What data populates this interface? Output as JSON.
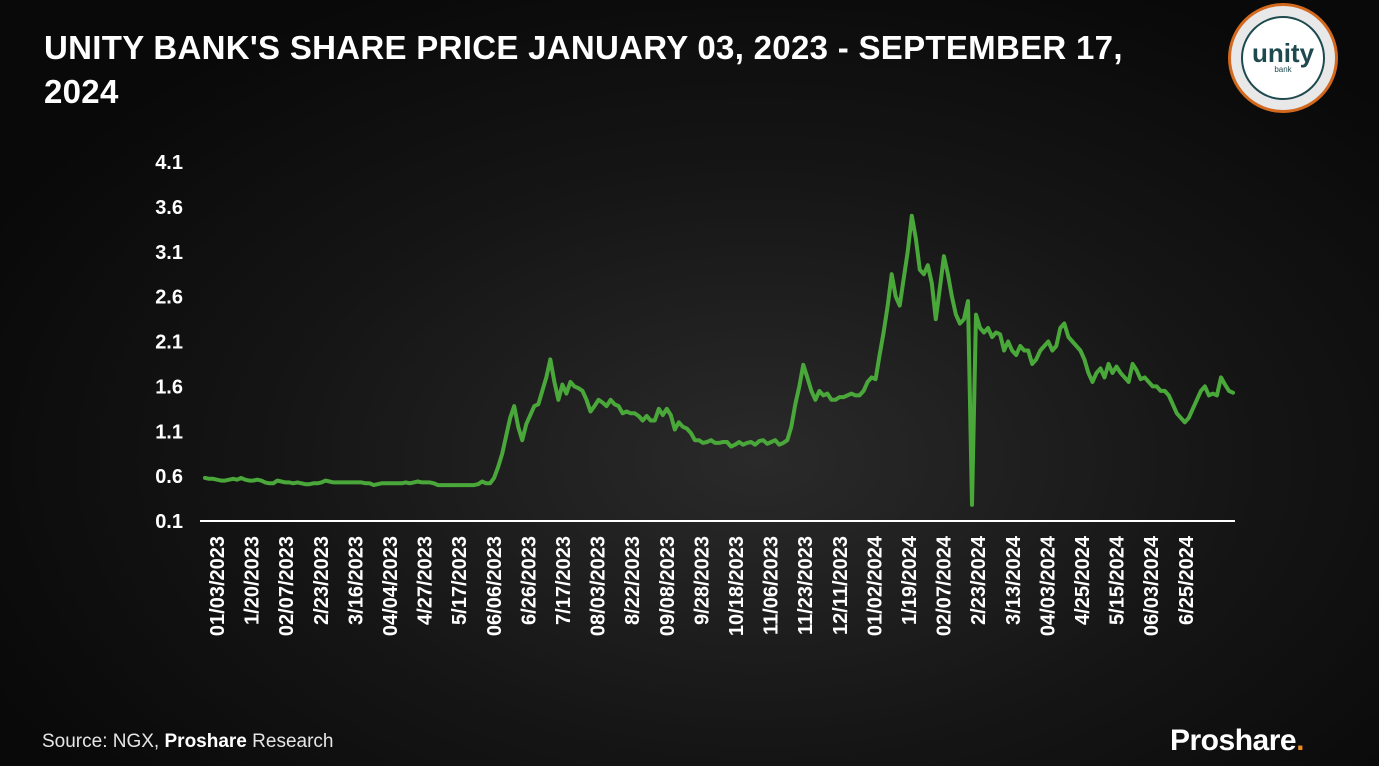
{
  "title": "UNITY BANK'S SHARE PRICE JANUARY 03, 2023 - SEPTEMBER 17, 2024",
  "logo": {
    "word": "unity",
    "sub": "bank"
  },
  "source": {
    "prefix": "Source: NGX, ",
    "bold": "Proshare",
    "suffix": " Research"
  },
  "brand": {
    "name": "Proshare",
    "dot": "."
  },
  "colors": {
    "line": "#4aa83a",
    "axis": "#ffffff",
    "text": "#ffffff",
    "logo_ring": "#d2691e"
  },
  "chart_data": {
    "type": "line",
    "title": "UNITY BANK'S SHARE PRICE JANUARY 03, 2023 - SEPTEMBER 17, 2024",
    "xlabel": "",
    "ylabel": "",
    "ylim": [
      0.1,
      4.1
    ],
    "yticks": [
      "4.1",
      "3.6",
      "3.1",
      "2.6",
      "2.1",
      "1.6",
      "1.1",
      "0.6",
      "0.1"
    ],
    "xticks": [
      "01/03/2023",
      "1/20/2023",
      "02/07/2023",
      "2/23/2023",
      "3/16/2023",
      "04/04/2023",
      "4/27/2023",
      "5/17/2023",
      "06/06/2023",
      "6/26/2023",
      "7/17/2023",
      "08/03/2023",
      "8/22/2023",
      "09/08/2023",
      "9/28/2023",
      "10/18/2023",
      "11/06/2023",
      "11/23/2023",
      "12/11/2023",
      "01/02/2024",
      "1/19/2024",
      "02/07/2024",
      "2/23/2024",
      "3/13/2024",
      "04/03/2024",
      "4/25/2024",
      "5/15/2024",
      "06/03/2024",
      "6/25/2024"
    ],
    "grid": false,
    "series": [
      {
        "values": [
          0.58,
          0.57,
          0.57,
          0.56,
          0.55,
          0.55,
          0.56,
          0.57,
          0.56,
          0.58,
          0.56,
          0.55,
          0.55,
          0.56,
          0.55,
          0.53,
          0.52,
          0.52,
          0.55,
          0.54,
          0.53,
          0.53,
          0.52,
          0.53,
          0.52,
          0.51,
          0.51,
          0.52,
          0.52,
          0.53,
          0.55,
          0.54,
          0.53,
          0.53,
          0.53,
          0.53,
          0.53,
          0.53,
          0.53,
          0.53,
          0.52,
          0.52,
          0.5,
          0.51,
          0.52,
          0.52,
          0.52,
          0.52,
          0.52,
          0.52,
          0.53,
          0.52,
          0.53,
          0.54,
          0.53,
          0.53,
          0.53,
          0.52,
          0.5,
          0.5,
          0.5,
          0.5,
          0.5,
          0.5,
          0.5,
          0.5,
          0.5,
          0.5,
          0.51,
          0.54,
          0.52,
          0.52,
          0.58,
          0.7,
          0.85,
          1.05,
          1.25,
          1.38,
          1.15,
          1.0,
          1.18,
          1.28,
          1.38,
          1.4,
          1.55,
          1.7,
          1.9,
          1.65,
          1.45,
          1.62,
          1.52,
          1.65,
          1.6,
          1.58,
          1.55,
          1.45,
          1.32,
          1.38,
          1.45,
          1.42,
          1.38,
          1.45,
          1.4,
          1.38,
          1.3,
          1.32,
          1.3,
          1.3,
          1.27,
          1.22,
          1.27,
          1.22,
          1.22,
          1.35,
          1.28,
          1.35,
          1.28,
          1.12,
          1.2,
          1.15,
          1.13,
          1.08,
          1.0,
          1.0,
          0.97,
          0.98,
          1.0,
          0.97,
          0.97,
          0.98,
          0.98,
          0.93,
          0.95,
          0.98,
          0.95,
          0.97,
          0.98,
          0.95,
          0.99,
          1.0,
          0.96,
          0.98,
          1.0,
          0.95,
          0.97,
          1.0,
          1.15,
          1.4,
          1.6,
          1.84,
          1.7,
          1.55,
          1.45,
          1.55,
          1.5,
          1.52,
          1.45,
          1.45,
          1.48,
          1.48,
          1.5,
          1.52,
          1.5,
          1.5,
          1.55,
          1.65,
          1.7,
          1.68,
          1.95,
          2.2,
          2.5,
          2.85,
          2.6,
          2.5,
          2.8,
          3.1,
          3.5,
          3.25,
          2.9,
          2.85,
          2.95,
          2.75,
          2.35,
          2.7,
          3.05,
          2.85,
          2.6,
          2.4,
          2.3,
          2.35,
          2.55,
          0.28,
          2.4,
          2.25,
          2.2,
          2.25,
          2.15,
          2.2,
          2.18,
          2.0,
          2.1,
          2.0,
          1.95,
          2.05,
          2.0,
          2.0,
          1.85,
          1.9,
          2.0,
          2.05,
          2.1,
          2.0,
          2.05,
          2.25,
          2.3,
          2.15,
          2.1,
          2.05,
          2.0,
          1.9,
          1.75,
          1.65,
          1.75,
          1.8,
          1.7,
          1.85,
          1.75,
          1.82,
          1.75,
          1.7,
          1.65,
          1.85,
          1.78,
          1.68,
          1.7,
          1.65,
          1.6,
          1.6,
          1.55,
          1.55,
          1.5,
          1.4,
          1.3,
          1.25,
          1.2,
          1.25,
          1.35,
          1.45,
          1.55,
          1.6,
          1.5,
          1.52,
          1.5,
          1.7,
          1.62,
          1.55,
          1.53
        ]
      }
    ]
  }
}
